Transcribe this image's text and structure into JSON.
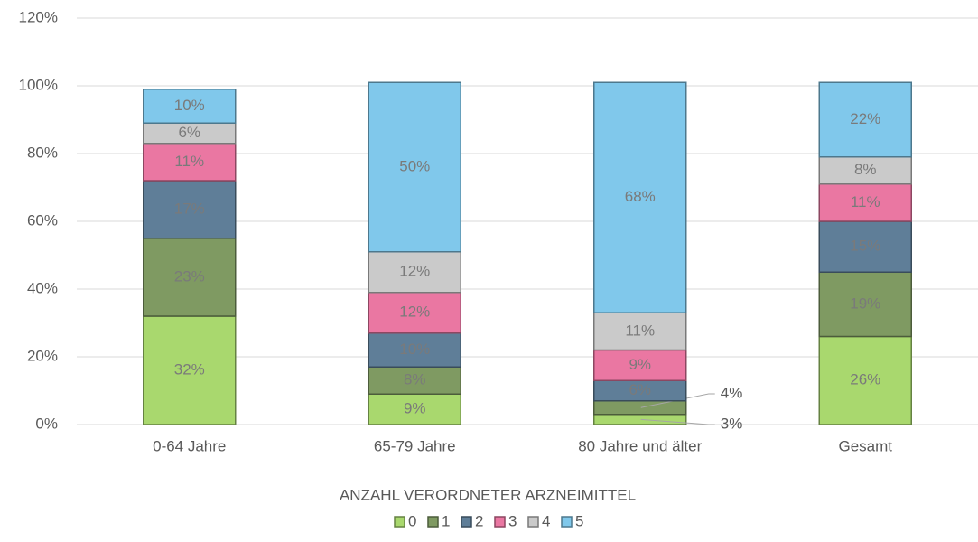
{
  "chart_data": {
    "type": "stacked_bar",
    "categories": [
      "0-64 Jahre",
      "65-79 Jahre",
      "80 Jahre und älter",
      "Gesamt"
    ],
    "x_label": "ANZAHL VERORDNETER ARZNEIMITTEL",
    "series": [
      {
        "name": "0",
        "color": "#a9d86e",
        "values": [
          32,
          9,
          3,
          26
        ],
        "value_labels": [
          "32%",
          "9%",
          "3%",
          "26%"
        ]
      },
      {
        "name": "1",
        "color": "#7f9a62",
        "values": [
          23,
          8,
          4,
          19
        ],
        "value_labels": [
          "23%",
          "8%",
          "4%",
          "19%"
        ]
      },
      {
        "name": "2",
        "color": "#5f7e98",
        "values": [
          17,
          10,
          6,
          15
        ],
        "value_labels": [
          "17%",
          "10%",
          "6%",
          "15%"
        ]
      },
      {
        "name": "3",
        "color": "#ea77a2",
        "values": [
          11,
          12,
          9,
          11
        ],
        "value_labels": [
          "11%",
          "12%",
          "9%",
          "11%"
        ]
      },
      {
        "name": "4",
        "color": "#cacaca",
        "values": [
          6,
          12,
          11,
          8
        ],
        "value_labels": [
          "6%",
          "12%",
          "11%",
          "8%"
        ]
      },
      {
        "name": "5",
        "color": "#80c8eb",
        "values": [
          10,
          50,
          68,
          22
        ],
        "value_labels": [
          "10%",
          "50%",
          "68%",
          "22%"
        ]
      }
    ],
    "ylim": [
      0,
      120
    ],
    "yticks": [
      {
        "value": 0,
        "label": "0%"
      },
      {
        "value": 20,
        "label": "20%"
      },
      {
        "value": 40,
        "label": "40%"
      },
      {
        "value": 60,
        "label": "60%"
      },
      {
        "value": 80,
        "label": "80%"
      },
      {
        "value": 100,
        "label": "100%"
      },
      {
        "value": 120,
        "label": "120%"
      }
    ],
    "grid": true,
    "legend": "bottom"
  }
}
